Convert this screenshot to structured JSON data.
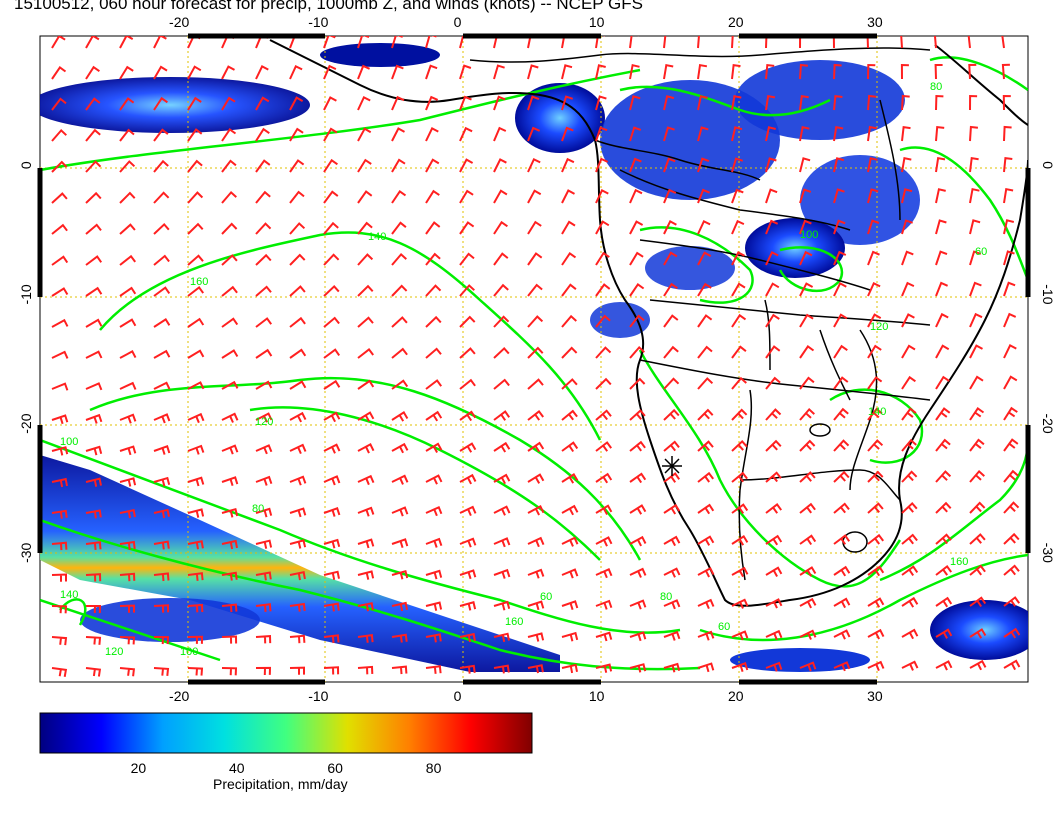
{
  "title": "15100512, 060 hour forecast for precip, 1000mb Z, and winds (knots) -- NCEP GFS",
  "map": {
    "lon_range": [
      -30,
      41
    ],
    "lat_range": [
      -40,
      10
    ],
    "x_ticks": [
      -20,
      -10,
      0,
      10,
      20,
      30
    ],
    "y_ticks": [
      0,
      -10,
      -20,
      -30
    ],
    "contour_labels": [
      "160",
      "140",
      "120",
      "100",
      "80",
      "60"
    ],
    "colors": {
      "contours": "#00ee00",
      "wind_barbs": "#ff2020",
      "coastlines": "#000000",
      "grid": "#e0c000"
    }
  },
  "colorbar": {
    "title": "Precipitation, mm/day",
    "tick_labels": [
      "20",
      "40",
      "60",
      "80"
    ],
    "range": [
      0,
      100
    ],
    "colors": [
      "#000080",
      "#0000ff",
      "#00a0ff",
      "#00e0e0",
      "#40ff80",
      "#e0e000",
      "#ff8000",
      "#ff0000",
      "#800000"
    ]
  },
  "icons": {
    "marker": "asterisk-marker"
  }
}
